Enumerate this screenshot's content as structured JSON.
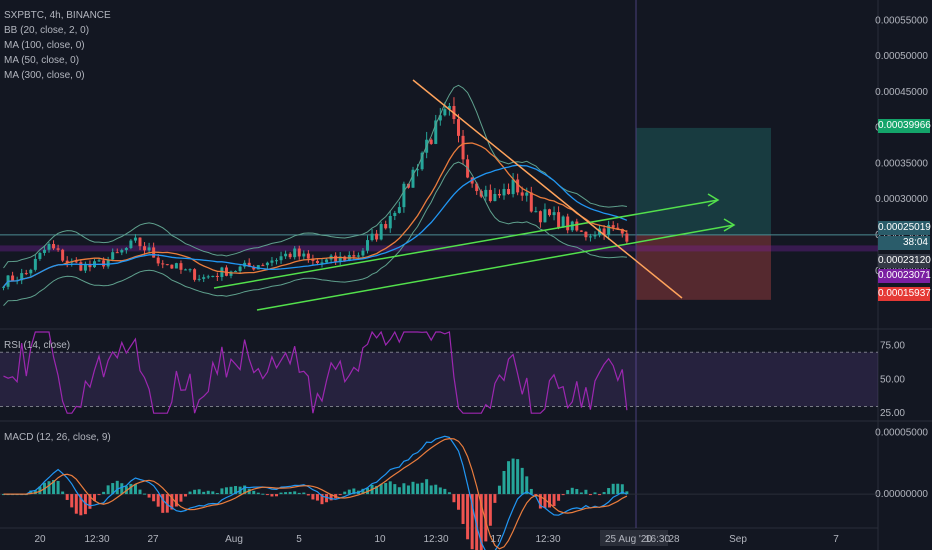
{
  "header": {
    "symbol_line": "SXPBTC, 4h, BINANCE",
    "indicators": [
      "BB (20, close, 2, 0)",
      "MA (100, close, 0)",
      "MA (50, close, 0)",
      "MA (300, close, 0)"
    ]
  },
  "rsi_label": "RSI (14, close)",
  "macd_label": "MACD (12, 26, close, 9)",
  "price_tags": {
    "target": "0.00039966",
    "entry": "0.00025019",
    "countdown": "38:04",
    "level1": "0.00023120",
    "level2": "0.00023071",
    "stop": "0.00015937"
  },
  "crosshair": {
    "date": "25 Aug '20",
    "time": "16:30"
  },
  "colors": {
    "background": "#131722",
    "up": "#26a69a",
    "down": "#ef5350",
    "bb": "#5fa08d",
    "ma100": "#e97c3d",
    "ma50": "#2196f3",
    "rsi": "#9c27b0",
    "trend_green": "#53e04c",
    "trend_orange": "#ffa35c",
    "target_tag": "#14a46a",
    "stop_tag": "#e53935",
    "level2_tag": "#7b1fa2"
  },
  "chart_data": [
    {
      "type": "candlestick",
      "title": "SXPBTC, 4h, BINANCE",
      "x": [
        "20",
        "12:30",
        "27",
        "Aug",
        "5",
        "10",
        "12:30",
        "17",
        "12:30",
        "28",
        "Sep",
        "7"
      ],
      "y_ticks": [
        "0.00055000",
        "0.00050000",
        "0.00045000",
        "0.00040000",
        "0.00035000",
        "0.00030000",
        "0.00025000",
        "0.00020000"
      ],
      "ylim": [
        0.00012,
        0.00057
      ],
      "keypoints": [
        {
          "x": "20",
          "close": 0.00019
        },
        {
          "x": "12:30",
          "close": 0.000215
        },
        {
          "x": "27",
          "close": 0.00021
        },
        {
          "x": "Aug",
          "close": 0.000205
        },
        {
          "x": "5",
          "close": 0.000225
        },
        {
          "x": "10",
          "close": 0.00025
        },
        {
          "x": "12:30",
          "close": 0.00042
        },
        {
          "x": "17",
          "close": 0.0003
        },
        {
          "x": "12:30",
          "close": 0.00028
        },
        {
          "x": "28",
          "close": 0.00025
        }
      ],
      "position": {
        "target": 0.00039966,
        "entry": 0.00025019,
        "stop": 0.00015937
      }
    },
    {
      "type": "line",
      "title": "RSI (14, close)",
      "y_ticks": [
        "75.00",
        "50.00",
        "25.00"
      ],
      "ylim": [
        20,
        85
      ],
      "bands": [
        70,
        30
      ]
    },
    {
      "type": "bar",
      "title": "MACD (12, 26, close, 9)",
      "y_ticks": [
        "0.00005000",
        "0.00000000"
      ],
      "ylim": [
        -2.5e-05,
        5.75e-05
      ]
    }
  ]
}
